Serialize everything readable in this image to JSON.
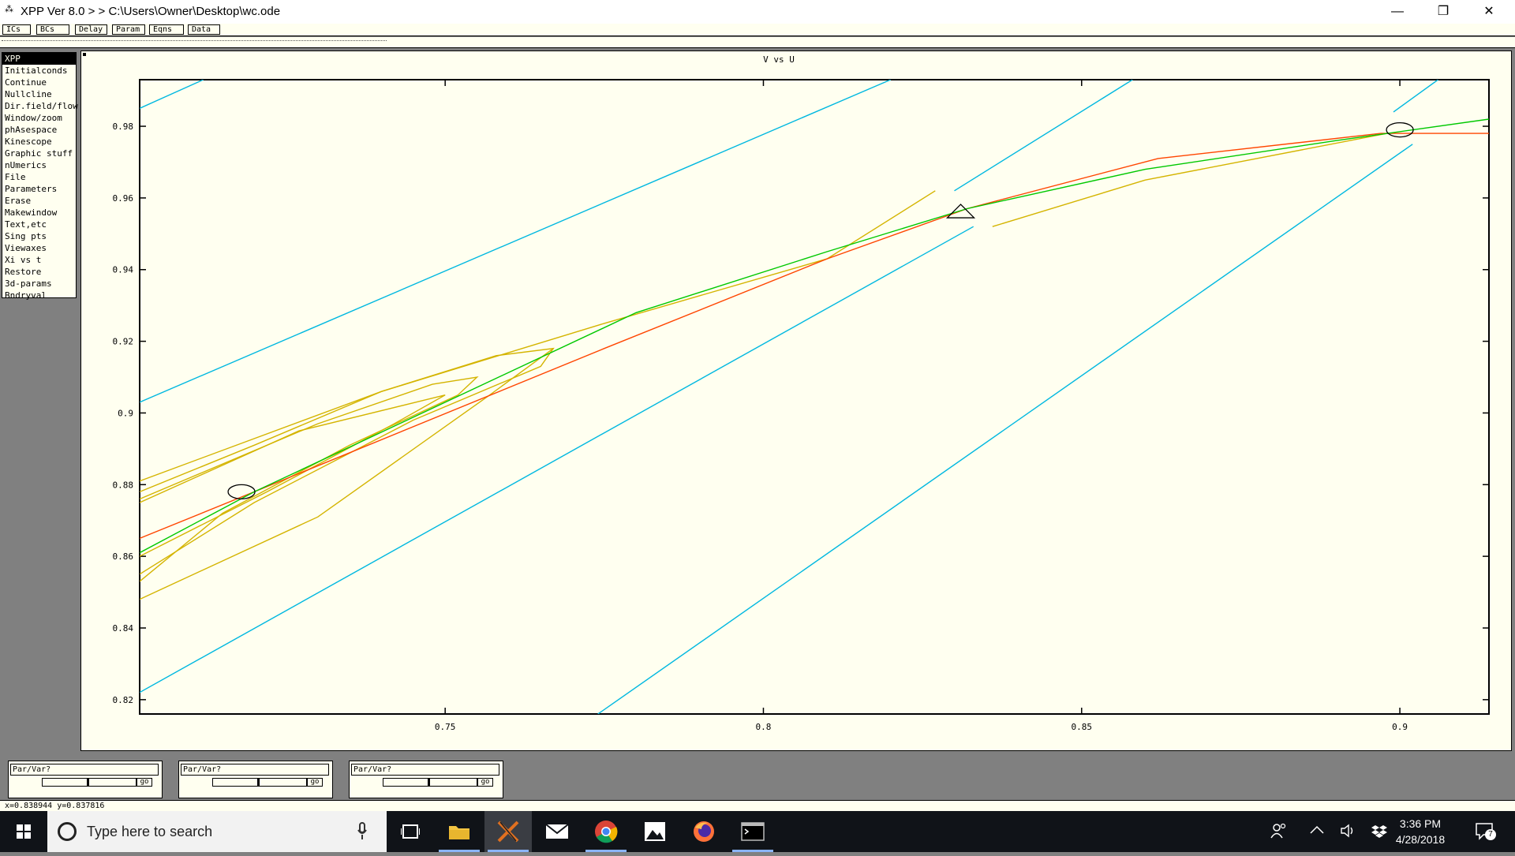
{
  "window": {
    "title": "XPP Ver 8.0 > > C:\\Users\\Owner\\Desktop\\wc.ode",
    "minimize_glyph": "—",
    "restore_glyph": "❐",
    "close_glyph": "✕"
  },
  "toolbar": [
    "ICs",
    "BCs",
    "Delay",
    "Param",
    "Eqns",
    "Data"
  ],
  "menu": {
    "items": [
      "XPP",
      "Initialconds",
      "Continue",
      "Nullcline",
      "Dir.field/flow",
      "Window/zoom",
      "phAsespace",
      "Kinescope",
      "Graphic stuff",
      "nUmerics",
      "File",
      "Parameters",
      "Erase",
      "Makewindow",
      "Text,etc",
      "Sing pts",
      "Viewaxes",
      "Xi vs t",
      "Restore",
      "3d-params",
      "Bndryval"
    ],
    "highlighted": 0
  },
  "graph": {
    "title": "V vs U"
  },
  "chart_data": {
    "type": "line",
    "title": "V vs U",
    "xlim": [
      0.702,
      0.914
    ],
    "ylim": [
      0.816,
      0.993
    ],
    "xticks": [
      0.75,
      0.8,
      0.85,
      0.9
    ],
    "xtick_labels": [
      "0.75",
      "0.8",
      "0.85",
      "0.9"
    ],
    "yticks": [
      0.82,
      0.84,
      0.86,
      0.88,
      0.9,
      0.92,
      0.94,
      0.96,
      0.98
    ],
    "ytick_labels": [
      "0.82",
      "0.84",
      "0.86",
      "0.88",
      "0.9",
      "0.92",
      "0.94",
      "0.96",
      "0.98"
    ],
    "series": [
      {
        "color": "#00b8e0",
        "points": [
          [
            0.702,
            0.985
          ],
          [
            0.712,
            0.993
          ]
        ]
      },
      {
        "color": "#00b8e0",
        "points": [
          [
            0.702,
            0.903
          ],
          [
            0.82,
            0.993
          ]
        ]
      },
      {
        "color": "#00b8e0",
        "points": [
          [
            0.83,
            0.962
          ],
          [
            0.858,
            0.993
          ]
        ]
      },
      {
        "color": "#00b8e0",
        "points": [
          [
            0.899,
            0.984
          ],
          [
            0.906,
            0.993
          ]
        ]
      },
      {
        "color": "#00b8e0",
        "points": [
          [
            0.702,
            0.822
          ],
          [
            0.833,
            0.952
          ]
        ]
      },
      {
        "color": "#00b8e0",
        "points": [
          [
            0.774,
            0.816
          ],
          [
            0.902,
            0.975
          ]
        ]
      },
      {
        "color": "#d4b400",
        "points": [
          [
            0.702,
            0.881
          ],
          [
            0.74,
            0.906
          ],
          [
            0.775,
            0.925
          ],
          [
            0.81,
            0.943
          ],
          [
            0.827,
            0.962
          ]
        ]
      },
      {
        "color": "#d4b400",
        "points": [
          [
            0.702,
            0.878
          ],
          [
            0.72,
            0.891
          ],
          [
            0.74,
            0.906
          ],
          [
            0.758,
            0.916
          ],
          [
            0.767,
            0.918
          ],
          [
            0.765,
            0.913
          ],
          [
            0.745,
            0.898
          ],
          [
            0.72,
            0.875
          ],
          [
            0.702,
            0.855
          ]
        ]
      },
      {
        "color": "#d4b400",
        "points": [
          [
            0.702,
            0.876
          ],
          [
            0.73,
            0.897
          ],
          [
            0.748,
            0.908
          ],
          [
            0.755,
            0.91
          ],
          [
            0.752,
            0.905
          ],
          [
            0.735,
            0.891
          ],
          [
            0.715,
            0.872
          ],
          [
            0.702,
            0.853
          ]
        ]
      },
      {
        "color": "#d4b400",
        "points": [
          [
            0.702,
            0.875
          ],
          [
            0.727,
            0.895
          ],
          [
            0.75,
            0.905
          ],
          [
            0.742,
            0.897
          ],
          [
            0.722,
            0.878
          ],
          [
            0.702,
            0.86
          ]
        ]
      },
      {
        "color": "#d4b400",
        "points": [
          [
            0.702,
            0.848
          ],
          [
            0.73,
            0.871
          ],
          [
            0.757,
            0.905
          ],
          [
            0.767,
            0.918
          ]
        ]
      },
      {
        "color": "#d4b400",
        "points": [
          [
            0.836,
            0.952
          ],
          [
            0.86,
            0.965
          ],
          [
            0.898,
            0.978
          ]
        ]
      },
      {
        "color": "#ff4500",
        "points": [
          [
            0.702,
            0.865
          ],
          [
            0.72,
            0.878
          ],
          [
            0.775,
            0.918
          ],
          [
            0.81,
            0.943
          ],
          [
            0.832,
            0.957
          ],
          [
            0.862,
            0.971
          ],
          [
            0.897,
            0.978
          ],
          [
            0.914,
            0.978
          ]
        ]
      },
      {
        "color": "#00c800",
        "points": [
          [
            0.702,
            0.861
          ],
          [
            0.72,
            0.878
          ],
          [
            0.78,
            0.928
          ],
          [
            0.81,
            0.945
          ],
          [
            0.832,
            0.957
          ],
          [
            0.86,
            0.968
          ],
          [
            0.89,
            0.976
          ],
          [
            0.914,
            0.982
          ]
        ]
      }
    ],
    "markers": [
      {
        "shape": "ellipse",
        "x": 0.718,
        "y": 0.878
      },
      {
        "shape": "triangle",
        "x": 0.831,
        "y": 0.956
      },
      {
        "shape": "ellipse",
        "x": 0.9,
        "y": 0.979
      }
    ],
    "grid": false
  },
  "sliders": [
    {
      "label": "Par/Var?",
      "go": "go"
    },
    {
      "label": "Par/Var?",
      "go": "go"
    },
    {
      "label": "Par/Var?",
      "go": "go"
    }
  ],
  "status": {
    "coords": "x=0.838944  y=0.837816"
  },
  "taskbar": {
    "search_placeholder": "Type here to search",
    "clock_time": "3:36 PM",
    "clock_date": "4/28/2018",
    "notification_count": "7",
    "icons": [
      "windows-icon",
      "task-view-icon",
      "file-explorer-icon",
      "xming-icon",
      "mail-icon",
      "chrome-icon",
      "photos-icon",
      "firefox-icon",
      "terminal-icon"
    ]
  }
}
